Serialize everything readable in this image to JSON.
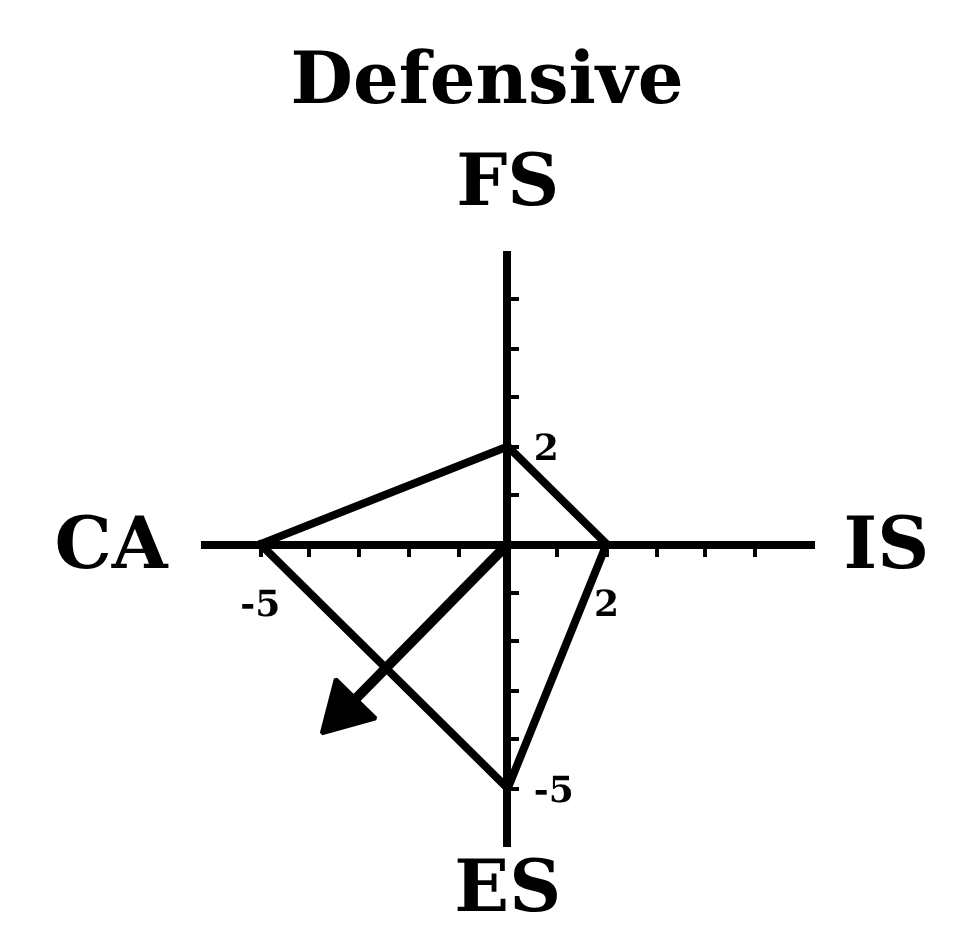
{
  "chart_data": {
    "type": "line",
    "title": "Defensive",
    "annotations": [
      "FS",
      "IS",
      "ES",
      "CA"
    ],
    "xlim": [
      -6.2,
      6.2
    ],
    "ylim": [
      -6.2,
      6
    ],
    "xticks": [
      -5,
      {
        "value": -4,
        "label": null
      },
      {
        "value": -3,
        "label": null
      },
      {
        "value": -2,
        "label": null
      },
      {
        "value": -1,
        "label": null
      },
      {
        "value": 1,
        "label": null
      },
      2,
      {
        "value": 3,
        "label": null
      },
      {
        "value": 4,
        "label": null
      },
      {
        "value": 5,
        "label": null
      }
    ],
    "yticks": [
      -5,
      {
        "value": -4,
        "label": null
      },
      {
        "value": -3,
        "label": null
      },
      {
        "value": -2,
        "label": null
      },
      {
        "value": -1,
        "label": null
      },
      {
        "value": 1,
        "label": null
      },
      2,
      {
        "value": 3,
        "label": null
      },
      {
        "value": 4,
        "label": null
      },
      {
        "value": 5,
        "label": null
      }
    ],
    "grid": false,
    "series": [
      {
        "color": "#000000",
        "x": [
          -5,
          0,
          2
        ],
        "values": [
          0,
          2,
          0
        ]
      },
      {
        "color": "#000000",
        "x": [
          -5,
          0,
          2
        ],
        "values": [
          0,
          -5,
          0
        ]
      },
      {
        "color": "#000000",
        "x": [
          0,
          -3.3
        ],
        "values": [
          0,
          -3.4
        ],
        "marker": "triangle"
      }
    ]
  }
}
